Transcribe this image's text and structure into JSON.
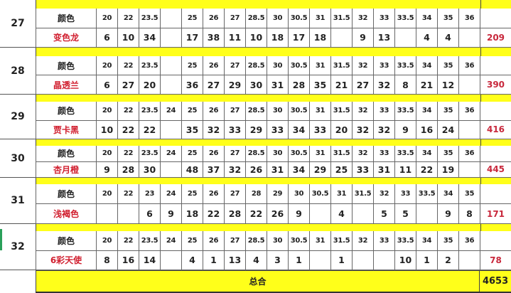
{
  "header_label": "颜色",
  "grand_total_label": "总合",
  "grand_total": "4653",
  "colors": {
    "strip": "#ffff1a",
    "name_red": "#d11f2f",
    "total_red": "#c8283c"
  },
  "blocks": [
    {
      "no": "27",
      "name": "变色龙",
      "total": "209",
      "sizes": [
        "20",
        "22",
        "23.5",
        "",
        "25",
        "26",
        "27",
        "28.5",
        "30",
        "30.5",
        "31",
        "31.5",
        "32",
        "33",
        "33.5",
        "34",
        "35",
        "36"
      ],
      "values": [
        "6",
        "10",
        "34",
        "",
        "17",
        "38",
        "11",
        "10",
        "18",
        "17",
        "18",
        "",
        "9",
        "13",
        "",
        "4",
        "4",
        ""
      ]
    },
    {
      "no": "28",
      "name": "晶透兰",
      "total": "390",
      "sizes": [
        "20",
        "22",
        "23.5",
        "",
        "25",
        "26",
        "27",
        "28.5",
        "30",
        "30.5",
        "31",
        "31.5",
        "32",
        "33",
        "33.5",
        "34",
        "35",
        "36"
      ],
      "values": [
        "6",
        "27",
        "20",
        "",
        "36",
        "27",
        "29",
        "30",
        "31",
        "28",
        "35",
        "21",
        "27",
        "32",
        "8",
        "21",
        "12",
        ""
      ]
    },
    {
      "no": "29",
      "name": "贾卡黑",
      "total": "416",
      "sizes": [
        "20",
        "22",
        "23.5",
        "24",
        "25",
        "26",
        "27",
        "28.5",
        "30",
        "30.5",
        "31",
        "31.5",
        "32",
        "33",
        "33.5",
        "34",
        "35",
        "36"
      ],
      "values": [
        "10",
        "22",
        "22",
        "",
        "35",
        "32",
        "33",
        "29",
        "33",
        "34",
        "33",
        "20",
        "32",
        "32",
        "9",
        "16",
        "24",
        ""
      ]
    },
    {
      "no": "30",
      "name": "杏月橙",
      "total": "445",
      "sizes": [
        "20",
        "22",
        "23.5",
        "24",
        "25",
        "26",
        "27",
        "28.5",
        "30",
        "30.5",
        "31",
        "31.5",
        "32",
        "33",
        "33.5",
        "34",
        "35",
        "36"
      ],
      "values": [
        "9",
        "28",
        "30",
        "",
        "48",
        "37",
        "32",
        "26",
        "31",
        "34",
        "29",
        "25",
        "33",
        "31",
        "11",
        "22",
        "19",
        ""
      ]
    },
    {
      "no": "31",
      "name": "浅褐色",
      "total": "171",
      "sizes": [
        "20",
        "22",
        "23",
        "24",
        "25",
        "26",
        "27",
        "28",
        "29",
        "30",
        "30.5",
        "31",
        "31.5",
        "32",
        "33",
        "33.5",
        "34",
        "35"
      ],
      "values": [
        "",
        "",
        "6",
        "9",
        "18",
        "22",
        "28",
        "22",
        "26",
        "9",
        "",
        "4",
        "",
        "5",
        "5",
        "",
        "9",
        "8"
      ]
    },
    {
      "no": "32",
      "name": "6彩天使",
      "total": "78",
      "sizes": [
        "20",
        "22",
        "23.5",
        "24",
        "25",
        "26",
        "27",
        "28.5",
        "30",
        "30.5",
        "31",
        "31.5",
        "32",
        "33",
        "33.5",
        "34",
        "35",
        "36"
      ],
      "values": [
        "8",
        "16",
        "14",
        "",
        "4",
        "1",
        "13",
        "4",
        "3",
        "1",
        "",
        "1",
        "",
        "",
        "10",
        "1",
        "2",
        ""
      ]
    }
  ]
}
